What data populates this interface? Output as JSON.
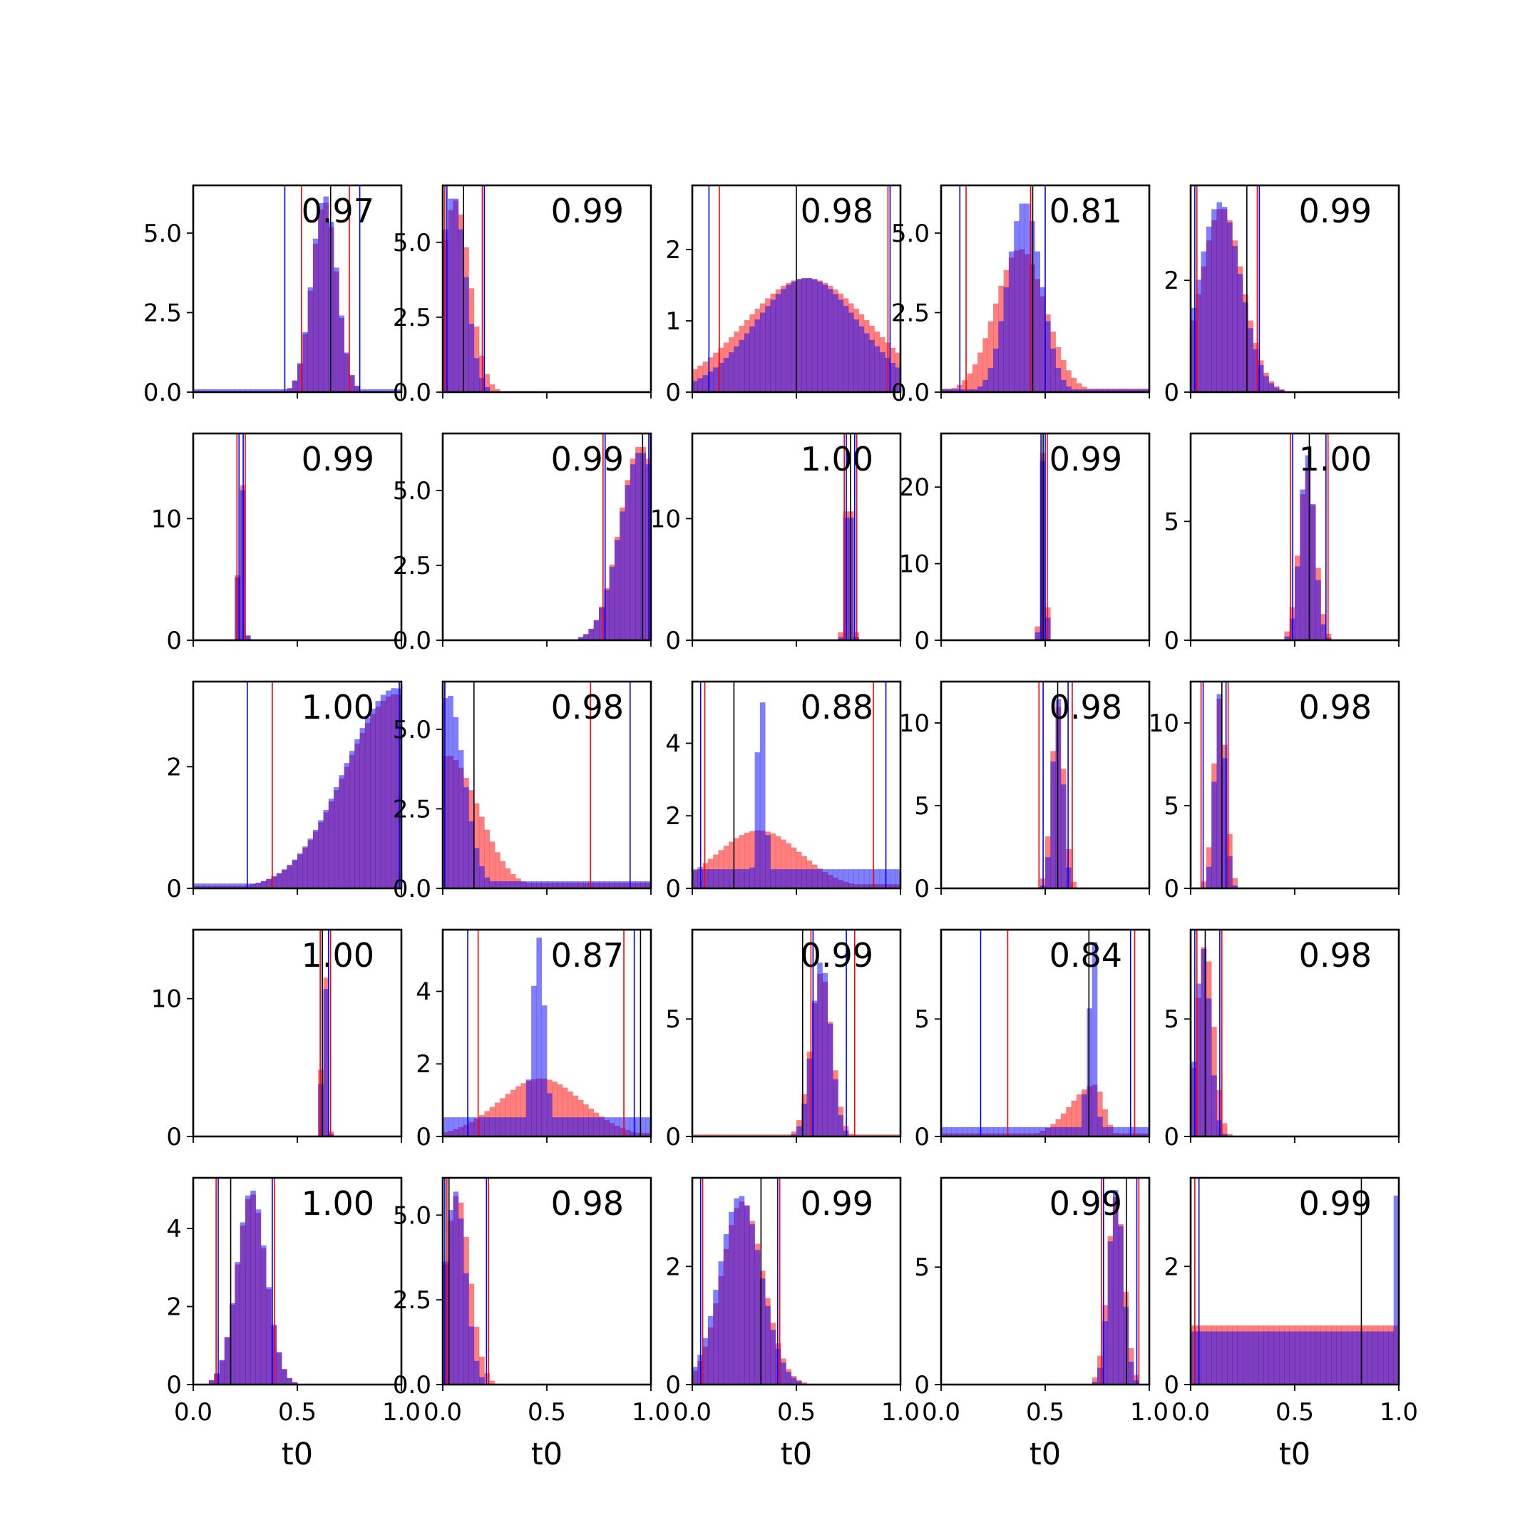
{
  "figure": {
    "xlabel": "t0"
  },
  "colors": {
    "series_a": "#ff0000",
    "series_b": "#0000ff",
    "overlap": "#800080",
    "marker": "#000000"
  },
  "chart_data": [
    {
      "type": "histogram",
      "annotation": "0.97",
      "xlim": [
        0,
        1
      ],
      "ylim": [
        0,
        6.5
      ],
      "yticks": [
        0,
        2.5,
        5
      ],
      "ytick_labels": [
        "0.0",
        "2.5",
        "5.0"
      ],
      "red": {
        "center": 0.63,
        "width": 0.06,
        "height": 6.0,
        "tail": 0.05
      },
      "blue": {
        "center": 0.63,
        "width": 0.06,
        "height": 6.2,
        "tail": 0.12
      },
      "vlines": {
        "black": [
          0.66
        ],
        "red": [
          0.52,
          0.75
        ],
        "blue": [
          0.44,
          0.8
        ]
      }
    },
    {
      "type": "histogram",
      "annotation": "0.99",
      "xlim": [
        0,
        1
      ],
      "ylim": [
        0,
        6.9
      ],
      "yticks": [
        0,
        2.5,
        5
      ],
      "ytick_labels": [
        "0.0",
        "2.5",
        "5.0"
      ],
      "red": {
        "center": 0.06,
        "width": 0.07,
        "height": 6.4,
        "tail": 0
      },
      "blue": {
        "center": 0.05,
        "width": 0.06,
        "height": 6.6,
        "tail": 0
      },
      "vlines": {
        "black": [
          0.1
        ],
        "red": [
          0.01,
          0.19
        ],
        "blue": [
          0.02,
          0.2
        ]
      }
    },
    {
      "type": "histogram",
      "annotation": "0.98",
      "xlim": [
        0,
        1
      ],
      "ylim": [
        0,
        2.9
      ],
      "yticks": [
        0,
        1,
        2
      ],
      "ytick_labels": [
        "0",
        "1",
        "2"
      ],
      "red": {
        "center": 0.55,
        "width": 0.3,
        "height": 1.6,
        "tail": 0.3
      },
      "blue": {
        "center": 0.55,
        "width": 0.25,
        "height": 1.6,
        "tail": 0.5
      },
      "vlines": {
        "black": [
          0.5
        ],
        "red": [
          0.13,
          0.94
        ],
        "blue": [
          0.08,
          0.95
        ]
      }
    },
    {
      "type": "histogram",
      "annotation": "0.81",
      "xlim": [
        0,
        1
      ],
      "ylim": [
        0,
        6.5
      ],
      "yticks": [
        0,
        2.5,
        5
      ],
      "ytick_labels": [
        "0.0",
        "2.5",
        "5.0"
      ],
      "red": {
        "center": 0.38,
        "width": 0.12,
        "height": 4.5,
        "tail": 0.2
      },
      "blue": {
        "center": 0.4,
        "width": 0.08,
        "height": 6.0,
        "tail": 0.12
      },
      "vlines": {
        "black": [
          0.44
        ],
        "red": [
          0.12,
          0.43
        ],
        "blue": [
          0.09,
          0.5
        ]
      }
    },
    {
      "type": "histogram",
      "annotation": "0.99",
      "xlim": [
        0,
        1
      ],
      "ylim": [
        0,
        3.7
      ],
      "yticks": [
        0,
        2
      ],
      "ytick_labels": [
        "0",
        "2"
      ],
      "red": {
        "center": 0.15,
        "width": 0.1,
        "height": 3.3,
        "tail": 0
      },
      "blue": {
        "center": 0.14,
        "width": 0.1,
        "height": 3.4,
        "tail": 0
      },
      "vlines": {
        "black": [
          0.27
        ],
        "red": [
          0.03,
          0.32
        ],
        "blue": [
          0.02,
          0.33
        ]
      }
    },
    {
      "type": "histogram",
      "annotation": "0.99",
      "xlim": [
        0,
        1
      ],
      "ylim": [
        0,
        17
      ],
      "yticks": [
        0,
        10
      ],
      "ytick_labels": [
        "0",
        "10"
      ],
      "red": {
        "center": 0.23,
        "width": 0.012,
        "height": 15.5,
        "tail": 0
      },
      "blue": {
        "center": 0.23,
        "width": 0.012,
        "height": 15.0,
        "tail": 0
      },
      "vlines": {
        "black": [],
        "red": [
          0.21,
          0.25
        ],
        "blue": [
          0.22,
          0.24
        ]
      }
    },
    {
      "type": "histogram",
      "annotation": "0.99",
      "xlim": [
        0,
        1
      ],
      "ylim": [
        0,
        6.9
      ],
      "yticks": [
        0,
        2.5,
        5
      ],
      "ytick_labels": [
        "0.0",
        "2.5",
        "5.0"
      ],
      "red": {
        "center": 0.95,
        "width": 0.1,
        "height": 6.5,
        "tail": 0
      },
      "blue": {
        "center": 0.95,
        "width": 0.1,
        "height": 6.3,
        "tail": 0
      },
      "vlines": {
        "black": [
          0.96
        ],
        "red": [
          0.77,
          0.99
        ],
        "blue": [
          0.78,
          0.99
        ]
      }
    },
    {
      "type": "histogram",
      "annotation": "1.00",
      "xlim": [
        0,
        1
      ],
      "ylim": [
        0,
        17
      ],
      "yticks": [
        0,
        10
      ],
      "ytick_labels": [
        "0",
        "10"
      ],
      "red": {
        "center": 0.75,
        "width": 0.015,
        "height": 15.0,
        "tail": 0
      },
      "blue": {
        "center": 0.75,
        "width": 0.013,
        "height": 16.0,
        "tail": 0
      },
      "vlines": {
        "black": [
          0.76
        ],
        "red": [
          0.73,
          0.79
        ],
        "blue": [
          0.74,
          0.78
        ]
      }
    },
    {
      "type": "histogram",
      "annotation": "0.99",
      "xlim": [
        0,
        1
      ],
      "ylim": [
        0,
        27
      ],
      "yticks": [
        0,
        10,
        20
      ],
      "ytick_labels": [
        "0",
        "10",
        "20"
      ],
      "red": {
        "center": 0.49,
        "width": 0.012,
        "height": 25,
        "tail": 0
      },
      "blue": {
        "center": 0.49,
        "width": 0.011,
        "height": 24,
        "tail": 0
      },
      "vlines": {
        "black": [
          0.49
        ],
        "red": [
          0.48,
          0.51
        ],
        "blue": [
          0.48,
          0.5
        ]
      }
    },
    {
      "type": "histogram",
      "annotation": "1.00",
      "xlim": [
        0,
        1
      ],
      "ylim": [
        0,
        8.7
      ],
      "yticks": [
        0,
        5
      ],
      "ytick_labels": [
        "0",
        "5"
      ],
      "red": {
        "center": 0.56,
        "width": 0.04,
        "height": 7.2,
        "tail": 0
      },
      "blue": {
        "center": 0.56,
        "width": 0.035,
        "height": 7.8,
        "tail": 0
      },
      "vlines": {
        "black": [
          0.57
        ],
        "red": [
          0.48,
          0.66
        ],
        "blue": [
          0.49,
          0.65
        ]
      }
    },
    {
      "type": "histogram",
      "annotation": "1.00",
      "xlim": [
        0,
        1
      ],
      "ylim": [
        0,
        3.4
      ],
      "yticks": [
        0,
        2
      ],
      "ytick_labels": [
        "0",
        "2"
      ],
      "red": {
        "center": 0.98,
        "width": 0.25,
        "height": 3.2,
        "tail": 0.1,
        "skew": "left"
      },
      "blue": {
        "center": 0.98,
        "width": 0.25,
        "height": 3.3,
        "tail": 0.2,
        "skew": "left"
      },
      "vlines": {
        "black": [],
        "red": [
          0.38,
          1.0
        ],
        "blue": [
          0.26,
          0.99
        ]
      }
    },
    {
      "type": "histogram",
      "annotation": "0.98",
      "xlim": [
        0,
        1
      ],
      "ylim": [
        0,
        6.5
      ],
      "yticks": [
        0,
        2.5,
        5
      ],
      "ytick_labels": [
        "0.0",
        "2.5",
        "5.0"
      ],
      "red": {
        "center": 0.02,
        "width": 0.15,
        "height": 4.2,
        "tail": 0.35,
        "skew": "right"
      },
      "blue": {
        "center": 0.02,
        "width": 0.08,
        "height": 6.2,
        "tail": 0.3,
        "skew": "right"
      },
      "vlines": {
        "black": [
          0.15
        ],
        "red": [
          0.01,
          0.71
        ],
        "blue": [
          0.01,
          0.9
        ]
      }
    },
    {
      "type": "histogram",
      "annotation": "0.88",
      "xlim": [
        0,
        1
      ],
      "ylim": [
        0,
        5.7
      ],
      "yticks": [
        0,
        2,
        4
      ],
      "ytick_labels": [
        "0",
        "2",
        "4"
      ],
      "red": {
        "center": 0.32,
        "width": 0.2,
        "height": 1.6,
        "tail": 0.6
      },
      "blue": {
        "center": 0.33,
        "width": 0.02,
        "height": 5.5,
        "tail": 0.8
      },
      "vlines": {
        "black": [
          0.2
        ],
        "red": [
          0.06,
          0.87
        ],
        "blue": [
          0.04,
          0.93
        ]
      }
    },
    {
      "type": "histogram",
      "annotation": "0.98",
      "xlim": [
        0,
        1
      ],
      "ylim": [
        0,
        12.5
      ],
      "yticks": [
        0,
        5,
        10
      ],
      "ytick_labels": [
        "0",
        "5",
        "10"
      ],
      "red": {
        "center": 0.56,
        "width": 0.03,
        "height": 11.0,
        "tail": 0
      },
      "blue": {
        "center": 0.56,
        "width": 0.025,
        "height": 11.5,
        "tail": 0
      },
      "vlines": {
        "black": [
          0.56
        ],
        "red": [
          0.47,
          0.63
        ],
        "blue": [
          0.49,
          0.61
        ]
      }
    },
    {
      "type": "histogram",
      "annotation": "0.98",
      "xlim": [
        0,
        1
      ],
      "ylim": [
        0,
        12.5
      ],
      "yticks": [
        0,
        5,
        10
      ],
      "ytick_labels": [
        "0",
        "5",
        "10"
      ],
      "red": {
        "center": 0.14,
        "width": 0.03,
        "height": 11.5,
        "tail": 0
      },
      "blue": {
        "center": 0.14,
        "width": 0.025,
        "height": 11.8,
        "tail": 0
      },
      "vlines": {
        "black": [
          0.15
        ],
        "red": [
          0.05,
          0.18
        ],
        "blue": [
          0.06,
          0.17
        ]
      }
    },
    {
      "type": "histogram",
      "annotation": "1.00",
      "xlim": [
        0,
        1
      ],
      "ylim": [
        0,
        15
      ],
      "yticks": [
        0,
        10
      ],
      "ytick_labels": [
        "0",
        "10"
      ],
      "red": {
        "center": 0.63,
        "width": 0.012,
        "height": 14,
        "tail": 0
      },
      "blue": {
        "center": 0.63,
        "width": 0.011,
        "height": 13.5,
        "tail": 0
      },
      "vlines": {
        "black": [
          0.62
        ],
        "red": [
          0.61,
          0.66
        ],
        "blue": [
          0.62,
          0.65
        ]
      }
    },
    {
      "type": "histogram",
      "annotation": "0.87",
      "xlim": [
        0,
        1
      ],
      "ylim": [
        0,
        5.7
      ],
      "yticks": [
        0,
        2,
        4
      ],
      "ytick_labels": [
        "0",
        "2",
        "4"
      ],
      "red": {
        "center": 0.47,
        "width": 0.2,
        "height": 1.6,
        "tail": 0.5
      },
      "blue": {
        "center": 0.46,
        "width": 0.03,
        "height": 5.5,
        "tail": 0.8
      },
      "vlines": {
        "black": [
          0.95
        ],
        "red": [
          0.17,
          0.87
        ],
        "blue": [
          0.12,
          0.92
        ]
      }
    },
    {
      "type": "histogram",
      "annotation": "0.99",
      "xlim": [
        0,
        1
      ],
      "ylim": [
        0,
        8.8
      ],
      "yticks": [
        0,
        5
      ],
      "ytick_labels": [
        "0",
        "5"
      ],
      "red": {
        "center": 0.62,
        "width": 0.05,
        "height": 7.0,
        "tail": 0.1
      },
      "blue": {
        "center": 0.62,
        "width": 0.045,
        "height": 7.5,
        "tail": 0.05
      },
      "vlines": {
        "black": [
          0.53
        ],
        "red": [
          0.57,
          0.78
        ],
        "blue": [
          0.58,
          0.74
        ]
      }
    },
    {
      "type": "histogram",
      "annotation": "0.84",
      "xlim": [
        0,
        1
      ],
      "ylim": [
        0,
        8.8
      ],
      "yticks": [
        0,
        5
      ],
      "ytick_labels": [
        "0",
        "5"
      ],
      "red": {
        "center": 0.74,
        "width": 0.12,
        "height": 2.2,
        "tail": 0.5,
        "skew": "left"
      },
      "blue": {
        "center": 0.74,
        "width": 0.03,
        "height": 8.3,
        "tail": 0.4,
        "skew": "left"
      },
      "vlines": {
        "black": [
          0.71
        ],
        "red": [
          0.32,
          0.93
        ],
        "blue": [
          0.19,
          0.91
        ]
      }
    },
    {
      "type": "histogram",
      "annotation": "0.98",
      "xlim": [
        0,
        1
      ],
      "ylim": [
        0,
        8.8
      ],
      "yticks": [
        0,
        5
      ],
      "ytick_labels": [
        "0",
        "5"
      ],
      "red": {
        "center": 0.07,
        "width": 0.04,
        "height": 8.2,
        "tail": 0
      },
      "blue": {
        "center": 0.06,
        "width": 0.035,
        "height": 8.0,
        "tail": 0
      },
      "vlines": {
        "black": [
          0.07
        ],
        "red": [
          0.03,
          0.15
        ],
        "blue": [
          0.02,
          0.14
        ]
      }
    },
    {
      "type": "histogram",
      "annotation": "1.00",
      "xlim": [
        0,
        1
      ],
      "ylim": [
        0,
        5.3
      ],
      "yticks": [
        0,
        2,
        4
      ],
      "ytick_labels": [
        "0",
        "2",
        "4"
      ],
      "red": {
        "center": 0.28,
        "width": 0.07,
        "height": 4.9,
        "tail": 0
      },
      "blue": {
        "center": 0.28,
        "width": 0.07,
        "height": 5.0,
        "tail": 0
      },
      "vlines": {
        "black": [
          0.18
        ],
        "red": [
          0.11,
          0.39
        ],
        "blue": [
          0.12,
          0.38
        ]
      }
    },
    {
      "type": "histogram",
      "annotation": "0.98",
      "xlim": [
        0,
        1
      ],
      "ylim": [
        0,
        6.1
      ],
      "yticks": [
        0,
        2.5,
        5
      ],
      "ytick_labels": [
        "0.0",
        "2.5",
        "5.0"
      ],
      "red": {
        "center": 0.07,
        "width": 0.06,
        "height": 5.6,
        "tail": 0
      },
      "blue": {
        "center": 0.06,
        "width": 0.05,
        "height": 5.7,
        "tail": 0
      },
      "vlines": {
        "black": [
          0.03
        ],
        "red": [
          0.02,
          0.22
        ],
        "blue": [
          0.01,
          0.21
        ]
      }
    },
    {
      "type": "histogram",
      "annotation": "0.99",
      "xlim": [
        0,
        1
      ],
      "ylim": [
        0,
        3.5
      ],
      "yticks": [
        0,
        2
      ],
      "ytick_labels": [
        "0",
        "2"
      ],
      "red": {
        "center": 0.24,
        "width": 0.1,
        "height": 3.1,
        "tail": 0
      },
      "blue": {
        "center": 0.23,
        "width": 0.1,
        "height": 3.2,
        "tail": 0
      },
      "vlines": {
        "black": [
          0.33
        ],
        "red": [
          0.05,
          0.42
        ],
        "blue": [
          0.04,
          0.41
        ]
      }
    },
    {
      "type": "histogram",
      "annotation": "0.99",
      "xlim": [
        0,
        1
      ],
      "ylim": [
        0,
        8.8
      ],
      "yticks": [
        0,
        5
      ],
      "ytick_labels": [
        "0",
        "5"
      ],
      "red": {
        "center": 0.84,
        "width": 0.04,
        "height": 8.0,
        "tail": 0
      },
      "blue": {
        "center": 0.84,
        "width": 0.035,
        "height": 8.3,
        "tail": 0
      },
      "vlines": {
        "black": [
          0.89
        ],
        "red": [
          0.77,
          0.95
        ],
        "blue": [
          0.78,
          0.94
        ]
      }
    },
    {
      "type": "histogram",
      "annotation": "0.99",
      "xlim": [
        0,
        1
      ],
      "ylim": [
        0,
        3.5
      ],
      "yticks": [
        0,
        2
      ],
      "ytick_labels": [
        "0",
        "2"
      ],
      "red": {
        "center": 0.5,
        "width": 1.0,
        "height": 1.0,
        "tail": 0,
        "uniform": true
      },
      "blue": {
        "center": 0.5,
        "width": 1.0,
        "height": 0.9,
        "tail": 0,
        "uniform": true,
        "spike_right": 3.2
      },
      "vlines": {
        "black": [
          0.82
        ],
        "red": [
          0.02,
          1.0
        ],
        "blue": [
          0.04,
          1.0
        ]
      }
    }
  ],
  "xticks": [
    0,
    0.5,
    1.0
  ],
  "xtick_labels": [
    "0.0",
    "0.5",
    "1.0"
  ]
}
